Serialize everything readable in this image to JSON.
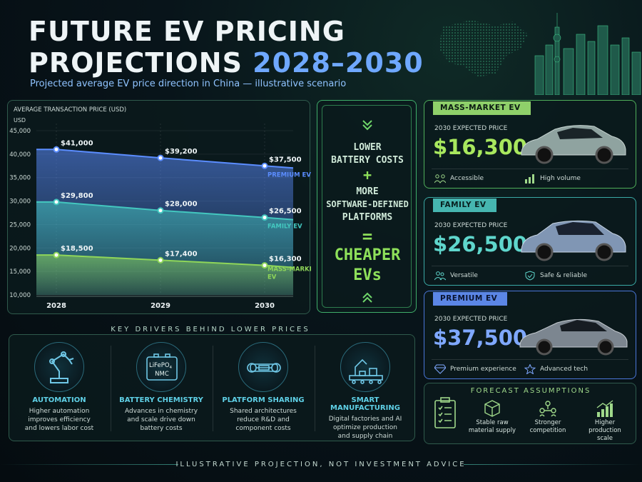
{
  "header": {
    "title_line1": "FUTURE EV PRICING",
    "title_line2_prefix": "PROJECTIONS ",
    "title_line2_years": "2028–2030",
    "subtitle": "Projected average EV price direction in China — illustrative scenario"
  },
  "chart_data": {
    "type": "area",
    "title": "AVERAGE TRANSACTION PRICE (USD)",
    "ylabel": "USD",
    "xlabel": "",
    "x": [
      "2028",
      "2029",
      "2030"
    ],
    "ylim": [
      10000,
      45000
    ],
    "yticks": [
      "45,000",
      "40,000",
      "35,000",
      "30,000",
      "25,000",
      "20,000",
      "15,000",
      "10,000"
    ],
    "ytick_values": [
      45000,
      40000,
      35000,
      30000,
      25000,
      20000,
      15000,
      10000
    ],
    "series": [
      {
        "name": "PREMIUM EV",
        "values": [
          41000,
          39200,
          37500
        ],
        "labels": [
          "$41,000",
          "$39,200",
          "$37,500"
        ],
        "color": "#5b8dff"
      },
      {
        "name": "FAMILY EV",
        "values": [
          29800,
          28000,
          26500
        ],
        "labels": [
          "$29,800",
          "$28,000",
          "$26,500"
        ],
        "color": "#43c7bf"
      },
      {
        "name": "MASS-MARKET EV",
        "values": [
          18500,
          17400,
          16300
        ],
        "labels": [
          "$18,500",
          "$17,400",
          "$16,300"
        ],
        "color": "#8fd659"
      }
    ]
  },
  "equation": {
    "line1": "LOWER",
    "line2": "BATTERY COSTS",
    "plus": "+",
    "line3": "MORE",
    "line4": "SOFTWARE-DEFINED",
    "line5": "PLATFORMS",
    "equals": "=",
    "result1": "CHEAPER",
    "result2": "EVs"
  },
  "cards": [
    {
      "tag": "MASS-MARKET EV",
      "label": "2030 EXPECTED PRICE",
      "price": "$16,300",
      "feat1": "Accessible",
      "feat2": "High volume",
      "car_color": "#8fa3a0"
    },
    {
      "tag": "FAMILY EV",
      "label": "2030 EXPECTED PRICE",
      "price": "$26,500",
      "feat1": "Versatile",
      "feat2": "Safe & reliable",
      "car_color": "#8096b4"
    },
    {
      "tag": "PREMIUM EV",
      "label": "2030 EXPECTED PRICE",
      "price": "$37,500",
      "feat1": "Premium experience",
      "feat2": "Advanced tech",
      "car_color": "#7c8690"
    }
  ],
  "drivers": {
    "title": "KEY DRIVERS BEHIND LOWER PRICES",
    "items": [
      {
        "name": "AUTOMATION",
        "desc1": "Higher automation",
        "desc2": "improves efficiency",
        "desc3": "and lowers labor cost"
      },
      {
        "name": "BATTERY CHEMISTRY",
        "desc1": "Advances in chemistry",
        "desc2": "and scale drive down",
        "desc3": "battery costs"
      },
      {
        "name": "PLATFORM SHARING",
        "desc1": "Shared architectures",
        "desc2": "reduce R&D and",
        "desc3": "component costs"
      },
      {
        "name": "SMART MANUFACTURING",
        "desc1": "Digital factories and AI",
        "desc2": "optimize production",
        "desc3": "and supply chain"
      }
    ],
    "battery_label1": "LiFePO",
    "battery_sub": "4",
    "battery_label2": "NMC"
  },
  "assumptions": {
    "title": "FORECAST ASSUMPTIONS",
    "items": [
      {
        "line1": "Stable raw",
        "line2": "material supply"
      },
      {
        "line1": "Stronger",
        "line2": "competition"
      },
      {
        "line1": "Higher",
        "line2": "production scale"
      }
    ]
  },
  "footer": "ILLUSTRATIVE PROJECTION, NOT INVESTMENT ADVICE",
  "colors": {
    "accent_green": "#8fd659",
    "accent_teal": "#43c7bf",
    "accent_blue": "#5b8dff"
  }
}
